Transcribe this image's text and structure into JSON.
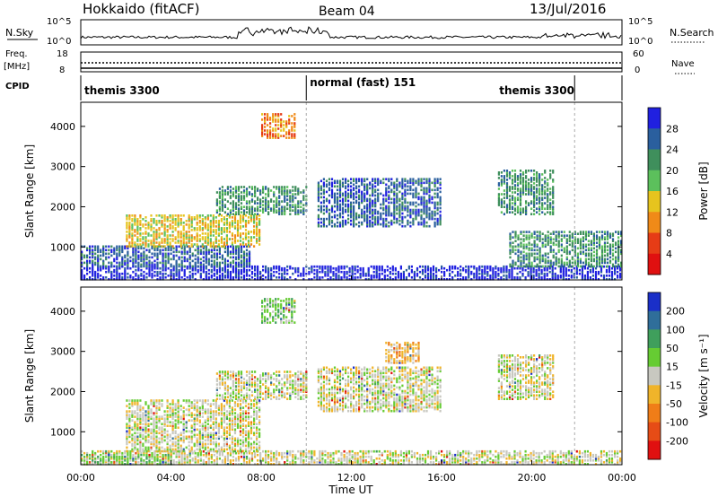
{
  "header": {
    "title": "Hokkaido (fitACF)",
    "beam": "Beam 04",
    "date": "13/Jul/2016"
  },
  "top_panels": {
    "nsky_label": "N.Sky",
    "nsky_ticks": [
      "10^5",
      "10^0"
    ],
    "nsky_right_ticks": [
      "10^5",
      "10^0"
    ],
    "nsearch_label": "N.Search",
    "freq_label": "Freq.",
    "freq_unit": "[MHz]",
    "freq_ticks": [
      "18",
      "8"
    ],
    "nave_ticks": [
      "60",
      "0"
    ],
    "nave_label": "Nave",
    "cpid_label": "CPID",
    "cpid_segments": [
      {
        "label": "themis 3300",
        "start": 0,
        "end": 10
      },
      {
        "label": "normal (fast) 151",
        "start": 10,
        "end": 21.9
      },
      {
        "label": "themis 3300",
        "start": 21.9,
        "end": 24
      }
    ]
  },
  "chart_data": [
    {
      "type": "heatmap",
      "ylabel": "Slant Range [km]",
      "yticks": [
        "4000",
        "3000",
        "2000",
        "1000"
      ],
      "ylim": [
        180,
        4600
      ],
      "colorbar_label": "Power [dB]",
      "colorbar_ticks": [
        "28",
        "24",
        "20",
        "16",
        "12",
        "8",
        "4"
      ],
      "colors": [
        "#2020e0",
        "#2a5f9e",
        "#3f8f5c",
        "#5cc05c",
        "#e6c41e",
        "#f08a18",
        "#e63c16",
        "#e01010"
      ],
      "xlim": [
        0,
        24
      ],
      "bands": [
        {
          "t0": 0,
          "t1": 24,
          "r0": 180,
          "r1": 500,
          "level": 7
        },
        {
          "t0": 0,
          "t1": 7.5,
          "r0": 500,
          "r1": 1000,
          "level": 6
        },
        {
          "t0": 2,
          "t1": 8,
          "r0": 1000,
          "r1": 1800,
          "level": 3
        },
        {
          "t0": 6,
          "t1": 10,
          "r0": 1800,
          "r1": 2500,
          "level": 5
        },
        {
          "t0": 10.5,
          "t1": 16,
          "r0": 1500,
          "r1": 2700,
          "level": 6
        },
        {
          "t0": 19,
          "t1": 24,
          "r0": 500,
          "r1": 1400,
          "level": 5
        },
        {
          "t0": 18.5,
          "t1": 21,
          "r0": 1800,
          "r1": 2900,
          "level": 5
        },
        {
          "t0": 8,
          "t1": 9.5,
          "r0": 3700,
          "r1": 4300,
          "level": 2
        }
      ]
    },
    {
      "type": "heatmap",
      "xlabel": "Time UT",
      "ylabel": "Slant Range [km]",
      "yticks": [
        "4000",
        "3000",
        "2000",
        "1000"
      ],
      "ylim": [
        180,
        4600
      ],
      "xticks": [
        "00:00",
        "04:00",
        "08:00",
        "12:00",
        "16:00",
        "20:00",
        "00:00"
      ],
      "xlim": [
        0,
        24
      ],
      "colorbar_label": "Velocity [m s⁻¹]",
      "colorbar_ticks": [
        "200",
        "100",
        "50",
        "15",
        "-15",
        "-50",
        "-100",
        "-200"
      ],
      "colors": [
        "#1a2fc8",
        "#2f6e9a",
        "#3f9f5c",
        "#66cc33",
        "#c8c8c0",
        "#f0b42a",
        "#f07d18",
        "#e64c16",
        "#e01010"
      ],
      "bands": [
        {
          "t0": 0,
          "t1": 24,
          "r0": 180,
          "r1": 500,
          "level": 4
        },
        {
          "t0": 2,
          "t1": 8,
          "r0": 500,
          "r1": 1800,
          "level": 4
        },
        {
          "t0": 6,
          "t1": 10,
          "r0": 1800,
          "r1": 2500,
          "level": 4
        },
        {
          "t0": 10.5,
          "t1": 16,
          "r0": 1500,
          "r1": 2600,
          "level": 4
        },
        {
          "t0": 13.5,
          "t1": 15,
          "r0": 2700,
          "r1": 3200,
          "level": 3
        },
        {
          "t0": 18.5,
          "t1": 21,
          "r0": 1800,
          "r1": 2900,
          "level": 4
        },
        {
          "t0": 0,
          "t1": 4,
          "r0": 180,
          "r1": 450,
          "level": 5
        },
        {
          "t0": 8,
          "t1": 9.5,
          "r0": 3700,
          "r1": 4300,
          "level": 5
        }
      ]
    }
  ]
}
